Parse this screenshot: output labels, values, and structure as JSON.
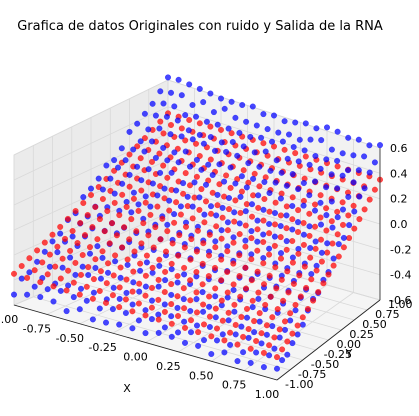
{
  "chart_data": {
    "type": "scatter3d",
    "title": "Grafica  de datos Originales con ruido y Salida de la RNA",
    "xlabel": "X",
    "ylabel": "Y",
    "zlabel": "",
    "xlim": [
      -1.0,
      1.0
    ],
    "ylim": [
      -1.0,
      1.0
    ],
    "zlim": [
      -0.6,
      0.6
    ],
    "x_ticks": [
      "-1.00",
      "-0.75",
      "-0.50",
      "-0.25",
      "0.00",
      "0.25",
      "0.50",
      "0.75",
      "1.00"
    ],
    "y_ticks": [
      "-1.00",
      "-0.75",
      "-0.50",
      "-0.25",
      "0.00",
      "0.25",
      "0.50",
      "0.75",
      "1.00"
    ],
    "z_ticks": [
      "-0.6",
      "-0.4",
      "-0.2",
      "0.0",
      "0.2",
      "0.4",
      "0.6"
    ],
    "grid": true,
    "series": [
      {
        "role": "original-noisy",
        "color": "#0000ff",
        "grid_points": 21,
        "z_model": {
          "a": 0.05,
          "b": 0.55,
          "noise": 0.03
        }
      },
      {
        "role": "network-output",
        "color": "#ff0000",
        "grid_points": 21,
        "z_model": {
          "a": 0.0,
          "b": 0.35,
          "noise": 0.0
        }
      }
    ]
  }
}
